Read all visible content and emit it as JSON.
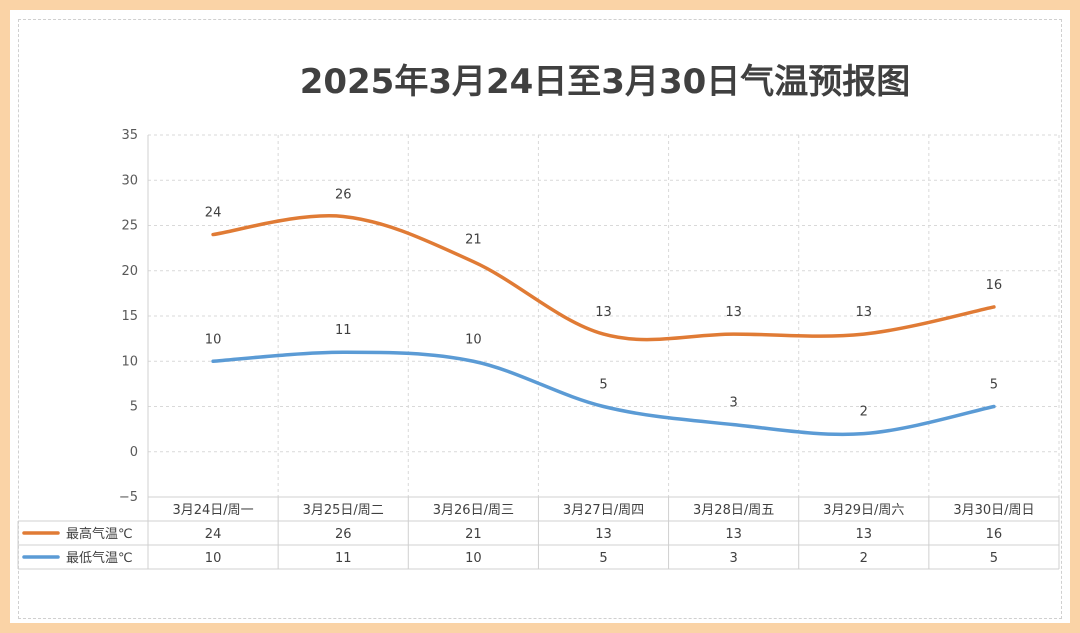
{
  "title": "2025年3月24日至3月30日气温预报图",
  "chart_data": {
    "type": "line",
    "title": "2025年3月24日至3月30日气温预报图",
    "categories": [
      "3月24日/周一",
      "3月25日/周二",
      "3月26日/周三",
      "3月27日/周四",
      "3月28日/周五",
      "3月29日/周六",
      "3月30日/周日"
    ],
    "series": [
      {
        "name": "最高气温℃",
        "values": [
          24,
          26,
          21,
          13,
          13,
          13,
          16
        ],
        "color": "#E07B35"
      },
      {
        "name": "最低气温℃",
        "values": [
          10,
          11,
          10,
          5,
          3,
          2,
          5
        ],
        "color": "#5B9BD5"
      }
    ],
    "ylim": [
      -5,
      35
    ],
    "yticks": [
      -5,
      0,
      5,
      10,
      15,
      20,
      25,
      30,
      35
    ],
    "ytick_labels": [
      "−5",
      "0",
      "5",
      "10",
      "15",
      "20",
      "25",
      "30",
      "35"
    ],
    "grid": true,
    "smooth": true,
    "data_table": true
  }
}
